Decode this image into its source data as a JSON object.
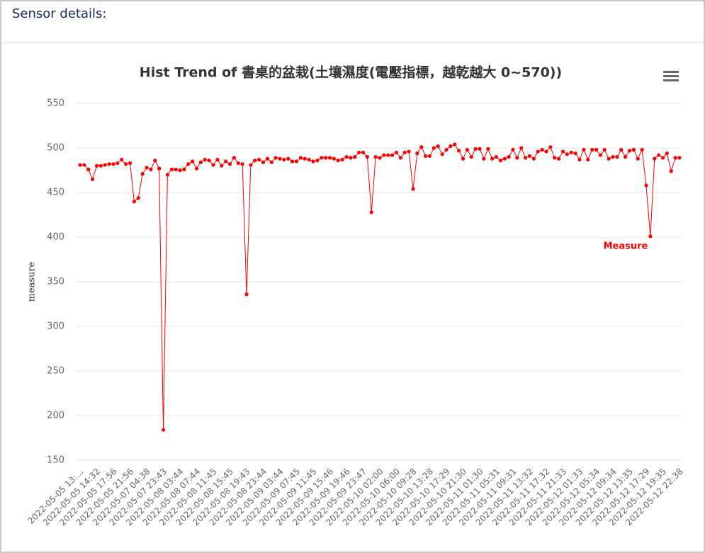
{
  "header": {
    "title": "Sensor details:"
  },
  "chart_data": {
    "type": "line",
    "title": "Hist Trend of 書桌的盆栽(土壤濕度(電壓指標，越乾越大 0~570))",
    "y_label": "measure",
    "categories": [
      "2022-05-05 13:…",
      null,
      null,
      null,
      "2022-05-05 14:32",
      null,
      null,
      null,
      "2022-05-05 17:56",
      null,
      null,
      null,
      "2022-05-05 21:56",
      null,
      null,
      null,
      "2022-05-07 04:38",
      null,
      null,
      null,
      "2022-05-07 23:43",
      null,
      null,
      null,
      "2022-05-08 03:44",
      null,
      null,
      null,
      "2022-05-08 07:44",
      null,
      null,
      null,
      "2022-05-08 11:45",
      null,
      null,
      null,
      "2022-05-08 15:45",
      null,
      null,
      null,
      "2022-05-08 19:43",
      null,
      null,
      null,
      "2022-05-08 23:44",
      null,
      null,
      null,
      "2022-05-09 03:44",
      null,
      null,
      null,
      "2022-05-09 07:45",
      null,
      null,
      null,
      "2022-05-09 11:45",
      null,
      null,
      null,
      "2022-05-09 15:46",
      null,
      null,
      null,
      "2022-05-09 19:46",
      null,
      null,
      null,
      "2022-05-09 23:47",
      null,
      null,
      null,
      "2022-05-10 02:00",
      null,
      null,
      null,
      "2022-05-10 06:00",
      null,
      null,
      null,
      "2022-05-10 09:28",
      null,
      null,
      null,
      "2022-05-10 13:28",
      null,
      null,
      null,
      "2022-05-10 17:29",
      null,
      null,
      null,
      "2022-05-10 21:30",
      null,
      null,
      null,
      "2022-05-11 01:30",
      null,
      null,
      null,
      "2022-05-11 05:31",
      null,
      null,
      null,
      "2022-05-11 09:31",
      null,
      null,
      null,
      "2022-05-11 13:32",
      null,
      null,
      null,
      "2022-05-11 17:32",
      null,
      null,
      null,
      "2022-05-11 21:33",
      null,
      null,
      null,
      "2022-05-12 01:33",
      null,
      null,
      null,
      "2022-05-12 05:34",
      null,
      null,
      null,
      "2022-05-12 09:34",
      null,
      null,
      null,
      "2022-05-12 13:35",
      null,
      null,
      null,
      "2022-05-12 17:29",
      null,
      null,
      null,
      "2022-05-12 19:35",
      null,
      null,
      null,
      "2022-05-12 22:38"
    ],
    "series": [
      {
        "name": "Measure",
        "color": "#ff0000",
        "values": [
          481,
          481,
          476,
          465,
          480,
          480,
          481,
          482,
          482,
          483,
          487,
          482,
          483,
          440,
          444,
          471,
          478,
          476,
          486,
          477,
          184,
          470,
          476,
          476,
          475,
          476,
          482,
          485,
          477,
          484,
          487,
          486,
          481,
          487,
          480,
          485,
          482,
          489,
          483,
          482,
          336,
          481,
          486,
          487,
          484,
          488,
          484,
          489,
          488,
          487,
          488,
          485,
          485,
          489,
          488,
          487,
          485,
          486,
          489,
          489,
          489,
          488,
          486,
          487,
          490,
          489,
          490,
          495,
          495,
          490,
          428,
          490,
          489,
          492,
          492,
          492,
          495,
          489,
          495,
          496,
          454,
          494,
          501,
          491,
          491,
          500,
          502,
          493,
          498,
          502,
          504,
          497,
          488,
          498,
          490,
          499,
          499,
          488,
          499,
          488,
          490,
          486,
          488,
          490,
          498,
          489,
          500,
          489,
          491,
          488,
          496,
          498,
          496,
          501,
          489,
          488,
          496,
          493,
          495,
          494,
          487,
          498,
          487,
          498,
          498,
          492,
          498,
          488,
          490,
          490,
          498,
          490,
          497,
          498,
          488,
          498,
          458,
          401,
          488,
          492,
          489,
          494,
          474,
          489,
          489
        ]
      }
    ],
    "ylim": [
      150,
      550
    ],
    "yticks": [
      150,
      200,
      250,
      300,
      350,
      400,
      450,
      500,
      550
    ],
    "grid": true
  }
}
